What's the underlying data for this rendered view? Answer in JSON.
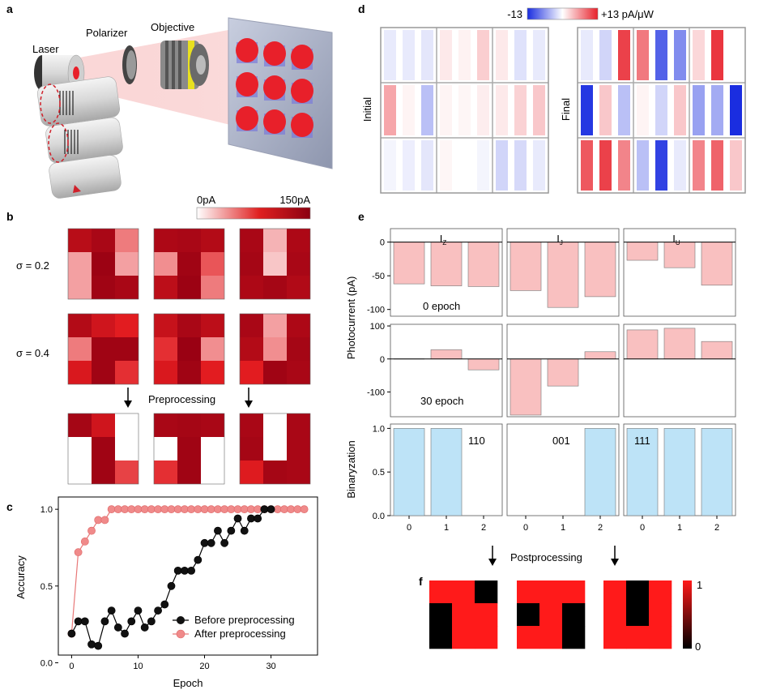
{
  "panels": {
    "a": {
      "label": "a",
      "components": {
        "laser": "Laser",
        "polarizer": "Polarizer",
        "objective": "Objective"
      },
      "spot_color": "#e8202a",
      "lens_band_color": "#e8e020"
    },
    "b": {
      "label": "b",
      "colorbar": {
        "min_label": "0pA",
        "max_label": "150pA",
        "min_color": "#ffffff",
        "max_color": "#8b0010"
      },
      "row_labels": [
        "σ = 0.2",
        "σ = 0.4"
      ],
      "arrow_label": "Preprocessing",
      "sigma02": [
        [
          [
            0.82,
            0.9,
            0.35
          ],
          [
            0.25,
            0.97,
            0.25
          ],
          [
            0.25,
            0.95,
            0.9
          ]
        ],
        [
          [
            0.88,
            0.9,
            0.85
          ],
          [
            0.3,
            0.95,
            0.45
          ],
          [
            0.8,
            0.97,
            0.35
          ]
        ],
        [
          [
            0.9,
            0.2,
            0.88
          ],
          [
            0.92,
            0.15,
            0.9
          ],
          [
            0.88,
            0.92,
            0.86
          ]
        ]
      ],
      "sigma04": [
        [
          [
            0.85,
            0.7,
            0.6
          ],
          [
            0.35,
            0.95,
            0.95
          ],
          [
            0.65,
            0.95,
            0.55
          ]
        ],
        [
          [
            0.75,
            0.9,
            0.8
          ],
          [
            0.55,
            0.98,
            0.3
          ],
          [
            0.65,
            0.95,
            0.6
          ]
        ],
        [
          [
            0.9,
            0.25,
            0.88
          ],
          [
            0.85,
            0.3,
            0.92
          ],
          [
            0.6,
            0.95,
            0.9
          ]
        ]
      ],
      "processed": [
        [
          [
            0.92,
            0.7,
            0.0
          ],
          [
            0.0,
            0.95,
            0.0
          ],
          [
            0.0,
            0.95,
            0.5
          ]
        ],
        [
          [
            0.9,
            0.92,
            0.9
          ],
          [
            0.0,
            0.95,
            0.0
          ],
          [
            0.55,
            0.95,
            0.0
          ]
        ],
        [
          [
            0.9,
            0.0,
            0.9
          ],
          [
            0.92,
            0.0,
            0.9
          ],
          [
            0.62,
            0.92,
            0.9
          ]
        ]
      ]
    },
    "c": {
      "label": "c",
      "chart_data": {
        "type": "line",
        "xlabel": "Epoch",
        "ylabel": "Accuracy",
        "xlim": [
          -2,
          37
        ],
        "ylim": [
          0.05,
          1.08
        ],
        "xticks": [
          0,
          10,
          20,
          30
        ],
        "yticks": [
          0.0,
          0.5,
          1.0
        ],
        "legend_position": "bottom-right",
        "series": [
          {
            "name": "Before preprocessing",
            "color": "#000000",
            "x": [
              0,
              1,
              2,
              3,
              4,
              5,
              6,
              7,
              8,
              9,
              10,
              11,
              12,
              13,
              14,
              15,
              16,
              17,
              18,
              19,
              20,
              21,
              22,
              23,
              24,
              25,
              26,
              27,
              28,
              29,
              30
            ],
            "y": [
              0.19,
              0.27,
              0.27,
              0.12,
              0.11,
              0.27,
              0.34,
              0.23,
              0.19,
              0.27,
              0.34,
              0.23,
              0.27,
              0.34,
              0.38,
              0.5,
              0.6,
              0.6,
              0.6,
              0.67,
              0.78,
              0.78,
              0.86,
              0.78,
              0.86,
              0.94,
              0.86,
              0.94,
              0.94,
              1.0,
              1.0
            ]
          },
          {
            "name": "After preprocessing",
            "color": "#e87878",
            "x": [
              0,
              1,
              2,
              3,
              4,
              5,
              6,
              7,
              8,
              9,
              10,
              11,
              12,
              13,
              14,
              15,
              16,
              17,
              18,
              19,
              20,
              21,
              22,
              23,
              24,
              25,
              26,
              27,
              28,
              29,
              30,
              31,
              32,
              33,
              34,
              35
            ],
            "y": [
              0.19,
              0.72,
              0.79,
              0.86,
              0.93,
              0.93,
              1,
              1,
              1,
              1,
              1,
              1,
              1,
              1,
              1,
              1,
              1,
              1,
              1,
              1,
              1,
              1,
              1,
              1,
              1,
              1,
              1,
              1,
              1,
              1,
              1,
              1,
              1,
              1,
              1,
              1
            ]
          }
        ]
      }
    },
    "d": {
      "label": "d",
      "colorbar": {
        "min_label": "-13",
        "max_label": "+13 pA/μW",
        "min_color": "#1a2de0",
        "max_color": "#e8202a"
      },
      "initial_label": "Initial",
      "final_label": "Final",
      "initial": [
        [
          -0.1,
          -0.1,
          -0.12,
          0.1,
          0.06,
          0.22,
          0.1,
          -0.14,
          -0.1
        ],
        [
          0.4,
          0.05,
          -0.3,
          0.05,
          0.04,
          0.08,
          0.1,
          0.2,
          0.25
        ],
        [
          -0.05,
          -0.08,
          -0.12,
          0.04,
          0.0,
          -0.05,
          -0.2,
          -0.18,
          -0.1
        ]
      ],
      "final": [
        [
          -0.1,
          -0.2,
          0.85,
          0.6,
          -0.75,
          -0.55,
          0.18,
          0.9,
          0.0
        ],
        [
          -0.95,
          0.25,
          -0.3,
          0.05,
          -0.2,
          0.25,
          -0.45,
          -0.4,
          -1.0
        ],
        [
          0.75,
          0.85,
          0.55,
          -0.3,
          -0.9,
          -0.1,
          0.55,
          0.7,
          0.25
        ]
      ]
    },
    "e": {
      "label": "e",
      "group_labels": [
        "I",
        "I",
        "I"
      ],
      "group_subscripts": [
        "Z",
        "J",
        "U"
      ],
      "ylabel_top": "Photocurrent (pA)",
      "ylabel_bottom": "Binaryzation",
      "epoch0_label": "0 epoch",
      "epoch30_label": "30 epoch",
      "binary_codes": [
        "110",
        "001",
        "111"
      ],
      "arrow_label": "Postprocessing",
      "xticks": [
        "0",
        "1",
        "2"
      ],
      "chart_data": [
        {
          "type": "bar",
          "title": "0 epoch",
          "ylim": [
            -110,
            20
          ],
          "yticks": [
            0,
            -50,
            -100
          ],
          "color": "#f9c0c0",
          "groups": [
            {
              "name": "IZ",
              "categories": [
                0,
                1,
                2
              ],
              "values": [
                -62,
                -65,
                -66
              ]
            },
            {
              "name": "IJ",
              "categories": [
                0,
                1,
                2
              ],
              "values": [
                -72,
                -97,
                -81
              ]
            },
            {
              "name": "IU",
              "categories": [
                0,
                1,
                2
              ],
              "values": [
                -27,
                -38,
                -64
              ]
            }
          ]
        },
        {
          "type": "bar",
          "title": "30 epoch",
          "ylim": [
            -175,
            105
          ],
          "yticks": [
            100,
            0,
            -100
          ],
          "color": "#f9c0c0",
          "groups": [
            {
              "name": "IZ",
              "categories": [
                0,
                1,
                2
              ],
              "values": [
                0,
                28,
                -33
              ]
            },
            {
              "name": "IJ",
              "categories": [
                0,
                1,
                2
              ],
              "values": [
                -170,
                -82,
                22
              ]
            },
            {
              "name": "IU",
              "categories": [
                0,
                1,
                2
              ],
              "values": [
                88,
                93,
                53
              ]
            }
          ]
        },
        {
          "type": "bar",
          "title": "Binaryzation",
          "ylim": [
            0,
            1.05
          ],
          "yticks": [
            1.0,
            0.5,
            0.0
          ],
          "color": "#bde3f7",
          "groups": [
            {
              "name": "IZ",
              "code": "110",
              "categories": [
                0,
                1,
                2
              ],
              "values": [
                1,
                1,
                0
              ]
            },
            {
              "name": "IJ",
              "code": "001",
              "categories": [
                0,
                1,
                2
              ],
              "values": [
                0,
                0,
                1
              ]
            },
            {
              "name": "IU",
              "code": "111",
              "categories": [
                0,
                1,
                2
              ],
              "values": [
                1,
                1,
                1
              ]
            }
          ]
        }
      ]
    },
    "f": {
      "label": "f",
      "colorbar": {
        "min_label": "0",
        "max_label": "1",
        "min_color": "#000000",
        "max_color": "#ff1a1a"
      },
      "patterns": [
        [
          [
            1,
            1,
            0
          ],
          [
            0,
            1,
            1
          ],
          [
            0,
            1,
            1
          ]
        ],
        [
          [
            1,
            1,
            1
          ],
          [
            0,
            1,
            0
          ],
          [
            1,
            1,
            0
          ]
        ],
        [
          [
            1,
            0,
            1
          ],
          [
            1,
            0,
            1
          ],
          [
            1,
            1,
            1
          ]
        ]
      ]
    }
  }
}
